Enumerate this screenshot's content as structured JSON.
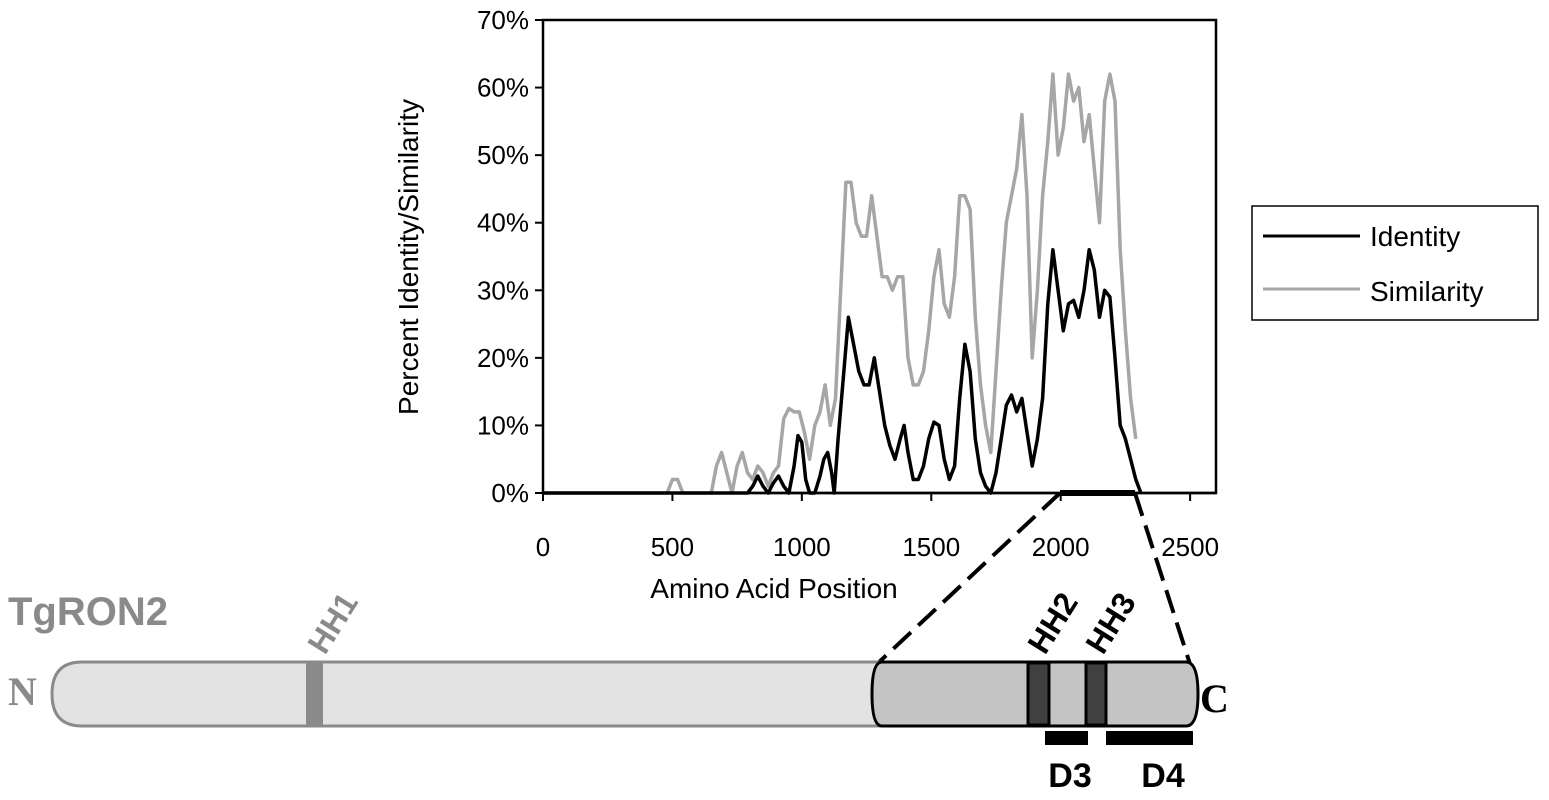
{
  "chart_data": {
    "type": "line",
    "xlabel": "Amino Acid Position",
    "ylabel": "Percent Identity/Similarity",
    "xlim": [
      0,
      2600
    ],
    "ylim": [
      0,
      70
    ],
    "xticks": [
      "0",
      "500",
      "1000",
      "1500",
      "2000",
      "2500"
    ],
    "xtick_values": [
      0,
      500,
      1000,
      1500,
      2000,
      2500
    ],
    "yticks": [
      "0%",
      "10%",
      "20%",
      "30%",
      "40%",
      "50%",
      "60%",
      "70%"
    ],
    "ytick_values": [
      0,
      10,
      20,
      30,
      40,
      50,
      60,
      70
    ],
    "legend_position": "right",
    "series": [
      {
        "name": "Identity",
        "color": "#000000",
        "points": [
          [
            0,
            0
          ],
          [
            480,
            0
          ],
          [
            500,
            0
          ],
          [
            520,
            0
          ],
          [
            540,
            0
          ],
          [
            600,
            0
          ],
          [
            650,
            0
          ],
          [
            700,
            0
          ],
          [
            750,
            0
          ],
          [
            790,
            0
          ],
          [
            810,
            1
          ],
          [
            830,
            2.5
          ],
          [
            850,
            1
          ],
          [
            870,
            0
          ],
          [
            890,
            1.5
          ],
          [
            910,
            2.5
          ],
          [
            930,
            1
          ],
          [
            950,
            0
          ],
          [
            970,
            4
          ],
          [
            985,
            8.5
          ],
          [
            1000,
            7.5
          ],
          [
            1015,
            2
          ],
          [
            1030,
            0
          ],
          [
            1050,
            0
          ],
          [
            1070,
            2.5
          ],
          [
            1085,
            5
          ],
          [
            1100,
            6
          ],
          [
            1115,
            3
          ],
          [
            1125,
            0
          ],
          [
            1140,
            8
          ],
          [
            1160,
            17
          ],
          [
            1180,
            26
          ],
          [
            1200,
            22
          ],
          [
            1220,
            18
          ],
          [
            1240,
            16
          ],
          [
            1260,
            16
          ],
          [
            1280,
            20
          ],
          [
            1300,
            15
          ],
          [
            1320,
            10
          ],
          [
            1340,
            7
          ],
          [
            1360,
            5
          ],
          [
            1380,
            8
          ],
          [
            1395,
            10
          ],
          [
            1410,
            6
          ],
          [
            1430,
            2
          ],
          [
            1450,
            2
          ],
          [
            1470,
            4
          ],
          [
            1490,
            8
          ],
          [
            1510,
            10.5
          ],
          [
            1530,
            10
          ],
          [
            1550,
            5
          ],
          [
            1570,
            2
          ],
          [
            1590,
            4
          ],
          [
            1610,
            14
          ],
          [
            1630,
            22
          ],
          [
            1650,
            18
          ],
          [
            1670,
            8
          ],
          [
            1690,
            3
          ],
          [
            1710,
            1
          ],
          [
            1730,
            0
          ],
          [
            1750,
            3
          ],
          [
            1770,
            8
          ],
          [
            1790,
            13
          ],
          [
            1810,
            14.5
          ],
          [
            1830,
            12
          ],
          [
            1850,
            14
          ],
          [
            1870,
            9
          ],
          [
            1890,
            4
          ],
          [
            1910,
            8
          ],
          [
            1930,
            14
          ],
          [
            1950,
            28
          ],
          [
            1970,
            36
          ],
          [
            1990,
            30
          ],
          [
            2010,
            24
          ],
          [
            2030,
            28
          ],
          [
            2050,
            28.5
          ],
          [
            2070,
            26
          ],
          [
            2090,
            30
          ],
          [
            2110,
            36
          ],
          [
            2130,
            33
          ],
          [
            2150,
            26
          ],
          [
            2170,
            30
          ],
          [
            2190,
            29
          ],
          [
            2210,
            20
          ],
          [
            2230,
            10
          ],
          [
            2250,
            8
          ],
          [
            2270,
            5
          ],
          [
            2290,
            2
          ],
          [
            2310,
            0
          ]
        ]
      },
      {
        "name": "Similarity",
        "color": "#a6a6a6",
        "points": [
          [
            0,
            0
          ],
          [
            480,
            0
          ],
          [
            500,
            2
          ],
          [
            520,
            2
          ],
          [
            540,
            0
          ],
          [
            600,
            0
          ],
          [
            620,
            0
          ],
          [
            650,
            0
          ],
          [
            670,
            4
          ],
          [
            690,
            6
          ],
          [
            710,
            3
          ],
          [
            730,
            0
          ],
          [
            750,
            4
          ],
          [
            770,
            6
          ],
          [
            790,
            3
          ],
          [
            810,
            2
          ],
          [
            830,
            4
          ],
          [
            850,
            3
          ],
          [
            870,
            1
          ],
          [
            890,
            3
          ],
          [
            910,
            4
          ],
          [
            930,
            11
          ],
          [
            950,
            12.5
          ],
          [
            970,
            12
          ],
          [
            990,
            12
          ],
          [
            1010,
            9
          ],
          [
            1030,
            5
          ],
          [
            1050,
            10
          ],
          [
            1070,
            12
          ],
          [
            1090,
            16
          ],
          [
            1110,
            10
          ],
          [
            1130,
            14
          ],
          [
            1150,
            30
          ],
          [
            1170,
            46
          ],
          [
            1190,
            46
          ],
          [
            1210,
            40
          ],
          [
            1230,
            38
          ],
          [
            1250,
            38
          ],
          [
            1270,
            44
          ],
          [
            1290,
            38
          ],
          [
            1310,
            32
          ],
          [
            1330,
            32
          ],
          [
            1350,
            30
          ],
          [
            1370,
            32
          ],
          [
            1390,
            32
          ],
          [
            1410,
            20
          ],
          [
            1430,
            16
          ],
          [
            1450,
            16
          ],
          [
            1470,
            18
          ],
          [
            1490,
            24
          ],
          [
            1510,
            32
          ],
          [
            1530,
            36
          ],
          [
            1550,
            28
          ],
          [
            1570,
            26
          ],
          [
            1590,
            32
          ],
          [
            1610,
            44
          ],
          [
            1630,
            44
          ],
          [
            1650,
            42
          ],
          [
            1670,
            26
          ],
          [
            1690,
            16
          ],
          [
            1710,
            10
          ],
          [
            1730,
            6
          ],
          [
            1750,
            18
          ],
          [
            1770,
            30
          ],
          [
            1790,
            40
          ],
          [
            1810,
            44
          ],
          [
            1830,
            48
          ],
          [
            1850,
            56
          ],
          [
            1870,
            44
          ],
          [
            1890,
            20
          ],
          [
            1910,
            30
          ],
          [
            1930,
            44
          ],
          [
            1950,
            52
          ],
          [
            1970,
            62
          ],
          [
            1990,
            50
          ],
          [
            2010,
            54
          ],
          [
            2030,
            62
          ],
          [
            2050,
            58
          ],
          [
            2070,
            60
          ],
          [
            2090,
            52
          ],
          [
            2110,
            56
          ],
          [
            2130,
            48
          ],
          [
            2150,
            40
          ],
          [
            2170,
            58
          ],
          [
            2190,
            62
          ],
          [
            2210,
            58
          ],
          [
            2230,
            36
          ],
          [
            2250,
            24
          ],
          [
            2270,
            14
          ],
          [
            2290,
            8
          ]
        ]
      }
    ]
  },
  "legend": {
    "items": [
      {
        "label": "Identity",
        "color": "#000000"
      },
      {
        "label": "Similarity",
        "color": "#a6a6a6"
      }
    ]
  },
  "diagram": {
    "protein_name": "TgRON2",
    "n_terminus": "N",
    "c_terminus": "C",
    "hh1": "HH1",
    "hh2": "HH2",
    "hh3": "HH3",
    "d3": "D3",
    "d4": "D4"
  }
}
